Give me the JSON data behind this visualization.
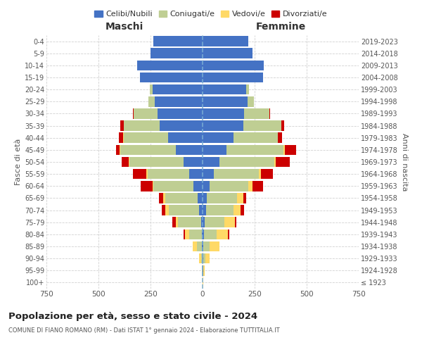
{
  "age_groups": [
    "100+",
    "95-99",
    "90-94",
    "85-89",
    "80-84",
    "75-79",
    "70-74",
    "65-69",
    "60-64",
    "55-59",
    "50-54",
    "45-49",
    "40-44",
    "35-39",
    "30-34",
    "25-29",
    "20-24",
    "15-19",
    "10-14",
    "5-9",
    "0-4"
  ],
  "birth_years": [
    "≤ 1923",
    "1924-1928",
    "1929-1933",
    "1934-1938",
    "1939-1943",
    "1944-1948",
    "1949-1953",
    "1954-1958",
    "1959-1963",
    "1964-1968",
    "1969-1973",
    "1974-1978",
    "1979-1983",
    "1984-1988",
    "1989-1993",
    "1994-1998",
    "1999-2003",
    "2004-2008",
    "2009-2013",
    "2014-2018",
    "2019-2023"
  ],
  "colors": {
    "celibi": "#4472C4",
    "coniugati": "#BFCE93",
    "vedovi": "#FFD966",
    "divorziati": "#CC0000"
  },
  "males": {
    "celibi": [
      0,
      0,
      0,
      2,
      5,
      8,
      18,
      25,
      45,
      65,
      90,
      130,
      165,
      205,
      215,
      230,
      240,
      300,
      315,
      250,
      235
    ],
    "coniugati": [
      0,
      2,
      8,
      25,
      60,
      110,
      145,
      155,
      190,
      200,
      260,
      265,
      215,
      175,
      115,
      30,
      15,
      0,
      0,
      0,
      0
    ],
    "vedovi": [
      0,
      3,
      10,
      20,
      20,
      12,
      15,
      10,
      6,
      5,
      5,
      3,
      2,
      0,
      0,
      0,
      0,
      0,
      0,
      0,
      0
    ],
    "divorziati": [
      0,
      0,
      0,
      0,
      5,
      15,
      18,
      20,
      55,
      65,
      35,
      18,
      20,
      15,
      5,
      0,
      0,
      0,
      0,
      0,
      0
    ]
  },
  "females": {
    "celibi": [
      1,
      2,
      5,
      5,
      8,
      10,
      18,
      20,
      35,
      55,
      80,
      115,
      150,
      195,
      200,
      215,
      210,
      290,
      295,
      240,
      220
    ],
    "coniugati": [
      0,
      3,
      10,
      30,
      60,
      95,
      130,
      145,
      185,
      215,
      265,
      275,
      210,
      185,
      120,
      30,
      12,
      0,
      0,
      0,
      0
    ],
    "vedovi": [
      2,
      5,
      18,
      45,
      55,
      50,
      35,
      30,
      20,
      12,
      8,
      5,
      3,
      0,
      0,
      0,
      0,
      0,
      0,
      0,
      0
    ],
    "divorziati": [
      0,
      0,
      2,
      2,
      5,
      8,
      15,
      15,
      50,
      55,
      65,
      55,
      18,
      12,
      5,
      0,
      0,
      0,
      0,
      0,
      0
    ]
  },
  "xlim": 750,
  "title": "Popolazione per età, sesso e stato civile - 2024",
  "subtitle": "COMUNE DI FIANO ROMANO (RM) - Dati ISTAT 1° gennaio 2024 - Elaborazione TUTTITALIA.IT",
  "xlabel_left": "Maschi",
  "xlabel_right": "Femmine",
  "ylabel_left": "Fasce di età",
  "ylabel_right": "Anni di nascita",
  "xtick_labels": [
    "750",
    "500",
    "250",
    "0",
    "250",
    "500",
    "750"
  ],
  "legend_labels": [
    "Celibi/Nubili",
    "Coniugati/e",
    "Vedovi/e",
    "Divorziati/e"
  ],
  "bg_color": "#ffffff",
  "grid_color": "#cccccc"
}
